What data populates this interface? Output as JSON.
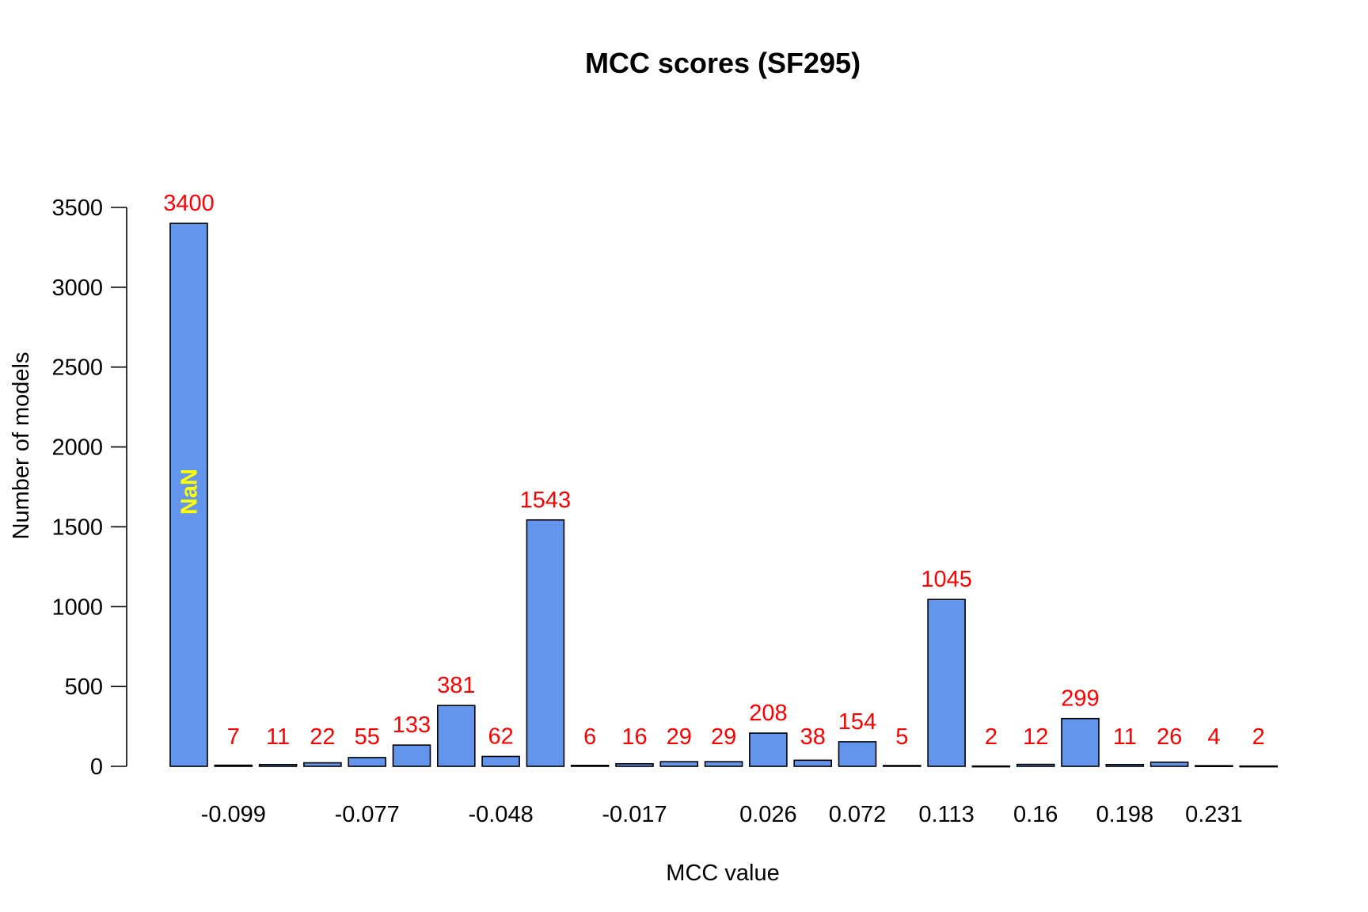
{
  "chart_data": {
    "type": "bar",
    "title": "MCC scores (SF295)",
    "xlabel": "MCC value",
    "ylabel": "Number of models",
    "values": [
      3400,
      7,
      11,
      22,
      55,
      133,
      381,
      62,
      1543,
      6,
      16,
      29,
      29,
      208,
      38,
      154,
      5,
      1045,
      2,
      12,
      299,
      11,
      26,
      4,
      2
    ],
    "value_labels": [
      "3400",
      "7",
      "11",
      "22",
      "55",
      "133",
      "381",
      "62",
      "1543",
      "6",
      "16",
      "29",
      "29",
      "208",
      "38",
      "154",
      "5",
      "1045",
      "2",
      "12",
      "299",
      "11",
      "26",
      "4",
      "2"
    ],
    "x_tick_labels": [
      {
        "bar_index": 1,
        "label": "-0.099"
      },
      {
        "bar_index": 4,
        "label": "-0.077"
      },
      {
        "bar_index": 7,
        "label": "-0.048"
      },
      {
        "bar_index": 10,
        "label": "-0.017"
      },
      {
        "bar_index": 13,
        "label": "0.026"
      },
      {
        "bar_index": 15,
        "label": "0.072"
      },
      {
        "bar_index": 17,
        "label": "0.113"
      },
      {
        "bar_index": 19,
        "label": "0.16"
      },
      {
        "bar_index": 21,
        "label": "0.198"
      },
      {
        "bar_index": 23,
        "label": "0.231"
      }
    ],
    "y_ticks": [
      0,
      500,
      1000,
      1500,
      2000,
      2500,
      3000,
      3500
    ],
    "y_tick_labels": [
      "0",
      "500",
      "1000",
      "1500",
      "2000",
      "2500",
      "3000",
      "3500"
    ],
    "ylim": [
      0,
      3500
    ],
    "annotation": {
      "bar_index": 0,
      "text": "NaN",
      "color": "#FFFF00"
    },
    "bar_color": "#6495ED",
    "bar_border_color": "#000000",
    "value_label_color": "#FF0000",
    "grid": false,
    "legend": "none"
  }
}
